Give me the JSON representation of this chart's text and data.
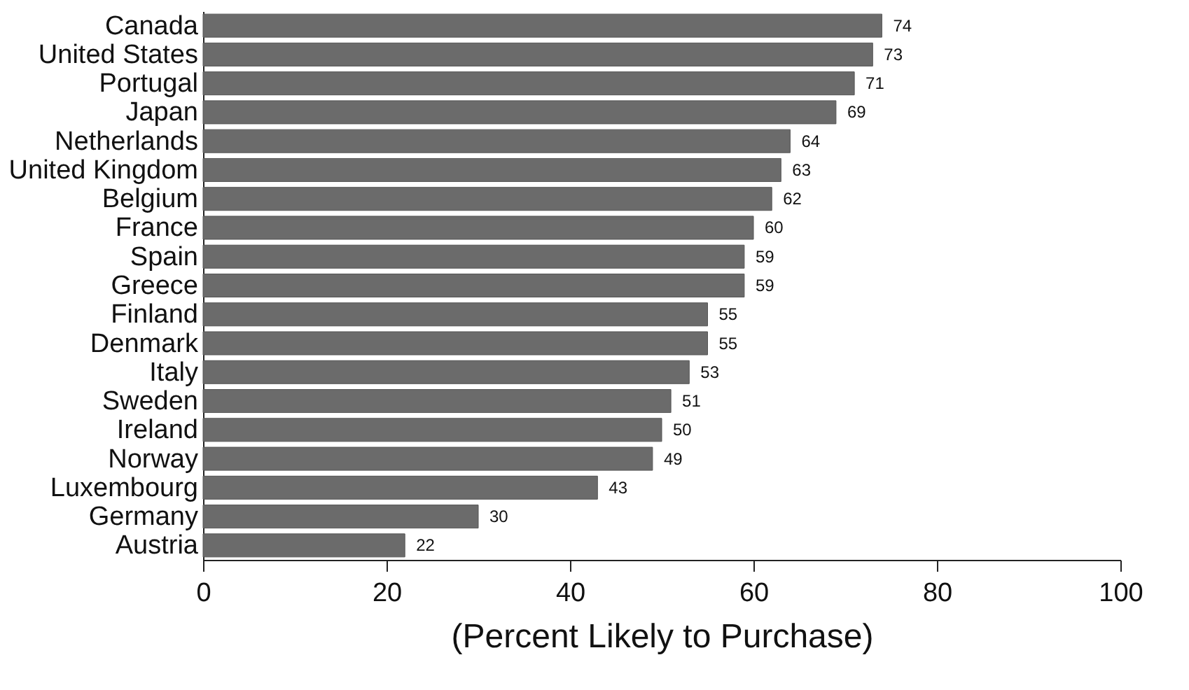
{
  "chart_data": {
    "type": "bar",
    "orientation": "horizontal",
    "xlabel": "(Percent Likely to Purchase)",
    "categories": [
      "Canada",
      "United States",
      "Portugal",
      "Japan",
      "Netherlands",
      "United Kingdom",
      "Belgium",
      "France",
      "Spain",
      "Greece",
      "Finland",
      "Denmark",
      "Italy",
      "Sweden",
      "Ireland",
      "Norway",
      "Luxembourg",
      "Germany",
      "Austria"
    ],
    "values": [
      74,
      73,
      71,
      69,
      64,
      63,
      62,
      60,
      59,
      59,
      55,
      55,
      53,
      51,
      50,
      49,
      43,
      30,
      22
    ],
    "color": "#6b6b6b",
    "xlim": [
      0,
      100
    ],
    "xticks": [
      0,
      20,
      40,
      60,
      80,
      100
    ],
    "data_labels": true,
    "grid": false
  }
}
